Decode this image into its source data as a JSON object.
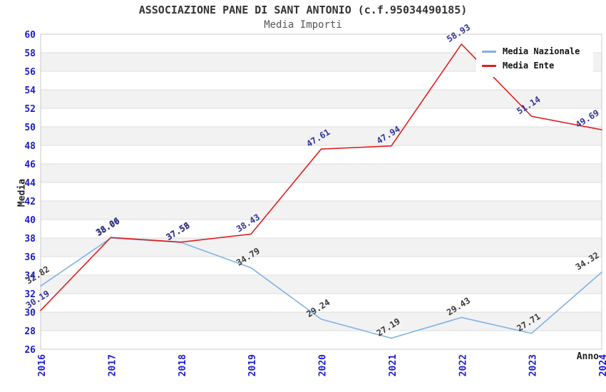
{
  "title": "ASSOCIAZIONE PANE DI SANT ANTONIO (c.f.95034490185)",
  "subtitle": "Media Importi",
  "axes": {
    "y_title": "Media",
    "x_title": "Anno",
    "tick_color": "#1a1acd"
  },
  "legend": {
    "position": "top-right",
    "items": [
      {
        "label": "Media Nazionale",
        "color": "#7fb2e5"
      },
      {
        "label": "Media Ente",
        "color": "#e02020"
      }
    ]
  },
  "chart_data": {
    "type": "line",
    "title": "ASSOCIAZIONE PANE DI SANT ANTONIO (c.f.95034490185)",
    "subtitle": "Media Importi",
    "xlabel": "Anno",
    "ylabel": "Media",
    "categories": [
      "2016",
      "2017",
      "2018",
      "2019",
      "2020",
      "2021",
      "2022",
      "2023",
      "2024"
    ],
    "ylim": [
      26,
      60
    ],
    "y_ticks": [
      26,
      28,
      30,
      32,
      34,
      36,
      38,
      40,
      42,
      44,
      46,
      48,
      50,
      52,
      54,
      56,
      58,
      60
    ],
    "grid": "horizontal-bands",
    "band_colors": [
      "#ffffff",
      "#f2f2f2"
    ],
    "gridline_color": "#dedede",
    "border_color": "#c9c9c9",
    "value_label_angle": -32,
    "x_label_angle": -90,
    "legend_position": "top-right",
    "series": [
      {
        "name": "Media Nazionale",
        "color": "#7fb2e5",
        "label_color": "#3a3a3a",
        "values": [
          32.82,
          38.0,
          37.53,
          34.79,
          29.24,
          27.19,
          29.43,
          27.71,
          34.32
        ]
      },
      {
        "name": "Media Ente",
        "color": "#e02020",
        "label_color": "#32329a",
        "values": [
          30.19,
          38.06,
          37.56,
          38.43,
          47.61,
          47.94,
          58.93,
          51.14,
          49.69
        ]
      }
    ]
  }
}
